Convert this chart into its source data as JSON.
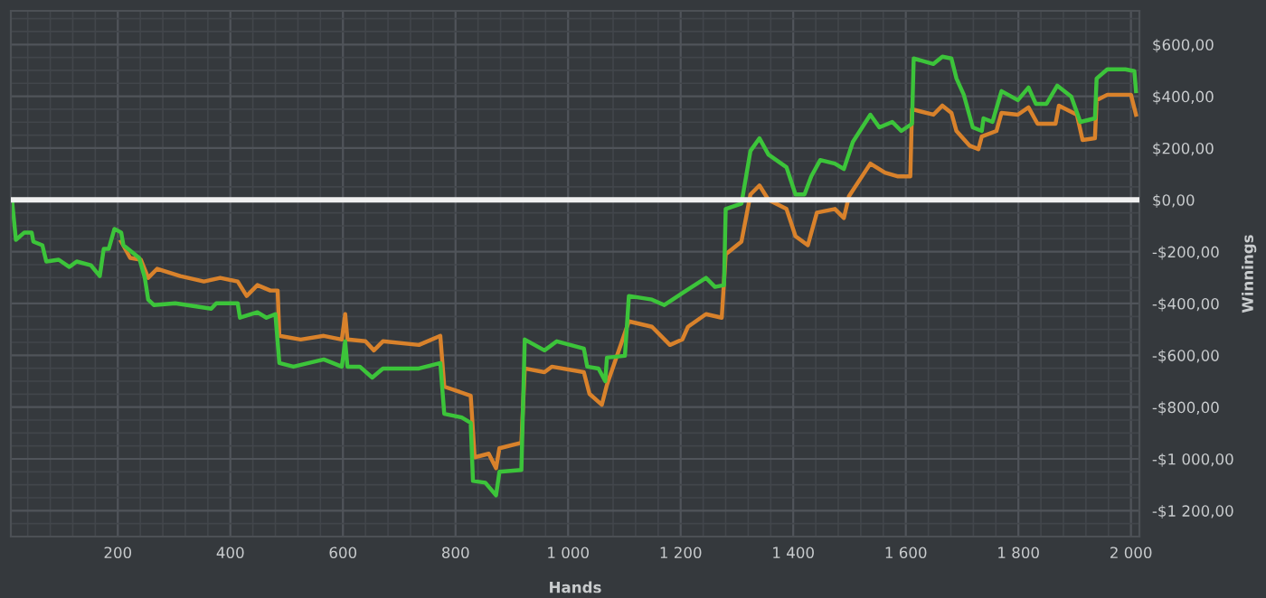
{
  "chart_data": {
    "type": "line",
    "xlabel": "Hands",
    "ylabel": "Winnings",
    "xlim": [
      10,
      2015
    ],
    "ylim": [
      -1300,
      730
    ],
    "xticks": [
      {
        "value": 200,
        "label": "200"
      },
      {
        "value": 400,
        "label": "400"
      },
      {
        "value": 600,
        "label": "600"
      },
      {
        "value": 800,
        "label": "800"
      },
      {
        "value": 1000,
        "label": "1 000"
      },
      {
        "value": 1200,
        "label": "1 200"
      },
      {
        "value": 1400,
        "label": "1 400"
      },
      {
        "value": 1600,
        "label": "1 600"
      },
      {
        "value": 1800,
        "label": "1 800"
      },
      {
        "value": 2000,
        "label": "2 000"
      }
    ],
    "yticks": [
      {
        "value": 600,
        "label": "$600,00"
      },
      {
        "value": 400,
        "label": "$400,00"
      },
      {
        "value": 200,
        "label": "$200,00"
      },
      {
        "value": 0,
        "label": "$0,00"
      },
      {
        "value": -200,
        "label": "-$200,00"
      },
      {
        "value": -400,
        "label": "-$400,00"
      },
      {
        "value": -600,
        "label": "-$600,00"
      },
      {
        "value": -800,
        "label": "-$800,00"
      },
      {
        "value": -1000,
        "label": "-$1 000,00"
      },
      {
        "value": -1200,
        "label": "-$1 200,00"
      }
    ],
    "grid": true,
    "legend": false,
    "ref_lines": [
      {
        "axis": "y",
        "value": 0,
        "label": null,
        "color": "#f0f0f0"
      }
    ],
    "series": [
      {
        "color": "#d9822b",
        "x": [
          206,
          222,
          241,
          254,
          270,
          311,
          353,
          382,
          413,
          429,
          448,
          471,
          484,
          487,
          525,
          566,
          598,
          604,
          608,
          640,
          655,
          671,
          735,
          773,
          780,
          827,
          834,
          859,
          872,
          878,
          917,
          923,
          958,
          971,
          1028,
          1038,
          1060,
          1069,
          1108,
          1149,
          1181,
          1203,
          1213,
          1245,
          1273,
          1280,
          1308,
          1324,
          1340,
          1356,
          1388,
          1404,
          1426,
          1442,
          1474,
          1490,
          1499,
          1537,
          1563,
          1585,
          1608,
          1611,
          1649,
          1665,
          1681,
          1690,
          1713,
          1729,
          1735,
          1761,
          1770,
          1799,
          1818,
          1834,
          1866,
          1872,
          1904,
          1914,
          1936,
          1939,
          1958,
          2000,
          2009
        ],
        "values": [
          -161,
          -224,
          -231,
          -301,
          -266,
          -294,
          -315,
          -301,
          -315,
          -371,
          -329,
          -350,
          -350,
          -525,
          -539,
          -525,
          -539,
          -441,
          -539,
          -546,
          -581,
          -546,
          -560,
          -525,
          -721,
          -756,
          -994,
          -980,
          -1036,
          -959,
          -938,
          -651,
          -665,
          -644,
          -665,
          -749,
          -791,
          -714,
          -469,
          -490,
          -560,
          -539,
          -490,
          -441,
          -455,
          -210,
          -161,
          21,
          56,
          0,
          -35,
          -140,
          -175,
          -49,
          -35,
          -70,
          14,
          140,
          105,
          91,
          91,
          350,
          329,
          364,
          336,
          266,
          210,
          196,
          245,
          266,
          336,
          329,
          357,
          294,
          294,
          364,
          329,
          231,
          238,
          385,
          406,
          406,
          329
        ]
      },
      {
        "color": "#3cc43a",
        "x": [
          12,
          19,
          34,
          47,
          50,
          66,
          73,
          95,
          114,
          127,
          152,
          168,
          175,
          184,
          194,
          206,
          210,
          238,
          248,
          254,
          264,
          302,
          366,
          375,
          413,
          417,
          448,
          464,
          480,
          487,
          512,
          566,
          598,
          604,
          608,
          630,
          652,
          671,
          735,
          773,
          780,
          811,
          827,
          831,
          853,
          872,
          878,
          917,
          923,
          958,
          980,
          1028,
          1034,
          1054,
          1066,
          1069,
          1101,
          1108,
          1149,
          1171,
          1210,
          1245,
          1261,
          1277,
          1280,
          1308,
          1324,
          1340,
          1356,
          1388,
          1404,
          1420,
          1432,
          1448,
          1474,
          1490,
          1506,
          1537,
          1553,
          1576,
          1592,
          1611,
          1614,
          1649,
          1665,
          1681,
          1690,
          1703,
          1719,
          1735,
          1738,
          1754,
          1770,
          1799,
          1818,
          1831,
          1850,
          1869,
          1894,
          1910,
          1936,
          1939,
          1958,
          1990,
          2006,
          2009
        ],
        "values": [
          0,
          -154,
          -126,
          -126,
          -161,
          -175,
          -238,
          -231,
          -259,
          -238,
          -252,
          -294,
          -189,
          -189,
          -112,
          -126,
          -175,
          -224,
          -301,
          -385,
          -406,
          -399,
          -420,
          -399,
          -399,
          -455,
          -434,
          -455,
          -441,
          -630,
          -644,
          -616,
          -644,
          -546,
          -644,
          -644,
          -686,
          -651,
          -651,
          -630,
          -826,
          -840,
          -861,
          -1085,
          -1092,
          -1141,
          -1050,
          -1043,
          -539,
          -581,
          -546,
          -574,
          -644,
          -651,
          -700,
          -609,
          -602,
          -371,
          -385,
          -406,
          -350,
          -301,
          -336,
          -329,
          -35,
          -14,
          189,
          238,
          175,
          126,
          21,
          21,
          91,
          154,
          140,
          119,
          224,
          329,
          280,
          301,
          266,
          294,
          546,
          525,
          553,
          546,
          469,
          406,
          280,
          266,
          315,
          301,
          420,
          385,
          434,
          371,
          371,
          441,
          399,
          301,
          315,
          469,
          504,
          504,
          497,
          420
        ]
      }
    ]
  }
}
